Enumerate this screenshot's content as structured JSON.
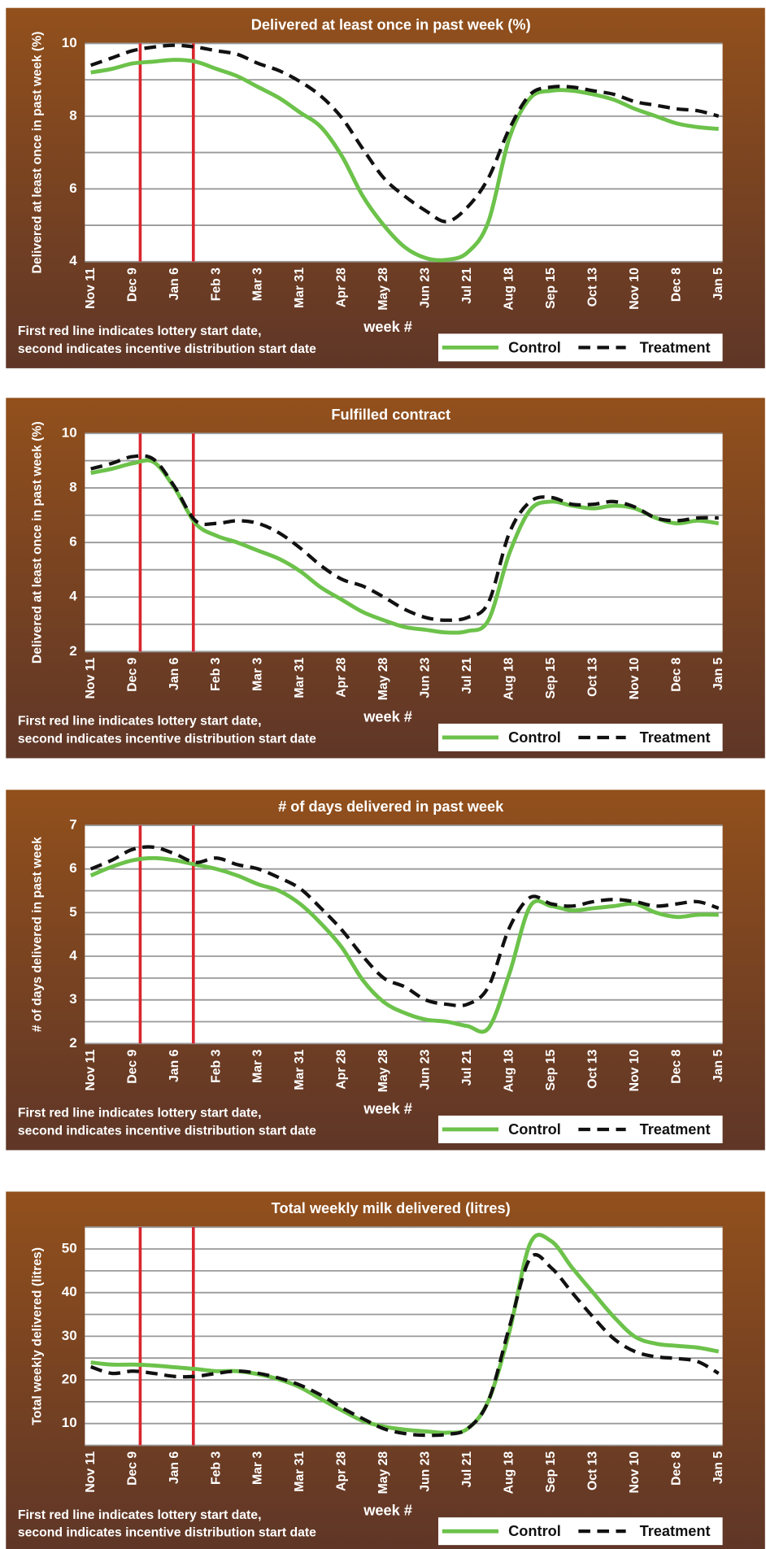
{
  "chart_data": [
    {
      "type": "line",
      "title": "Delivered at least once in past week (%)",
      "ylabel": "Delivered at least once in past week (%)",
      "xlabel": "week #",
      "note": [
        "First red line indicates lottery start date,",
        "second indicates incentive distribution start date"
      ],
      "categories": [
        "Nov 11",
        null,
        "Dec 9",
        null,
        "Jan 6",
        null,
        "Feb 3",
        null,
        "Mar 3",
        null,
        "Mar 31",
        null,
        "Apr 28",
        null,
        "May 28",
        null,
        "Jun 23",
        null,
        "Jul 21",
        null,
        "Aug 18",
        null,
        "Sep 15",
        null,
        "Oct 13",
        null,
        "Nov 10",
        null,
        "Dec 8",
        null,
        "Jan 5"
      ],
      "ylim": [
        4,
        10
      ],
      "yticks": [
        4,
        6,
        8,
        10
      ],
      "minor_grid": [
        5,
        7,
        9
      ],
      "grid": true,
      "vlines_x": [
        2.36,
        4.9
      ],
      "vline_color": "#d9262e",
      "series": [
        {
          "name": "Control",
          "color": "#6cc24a",
          "dashed": false,
          "values": [
            9.2,
            9.3,
            9.45,
            9.5,
            9.55,
            9.5,
            9.3,
            9.1,
            8.8,
            8.5,
            8.1,
            7.7,
            6.9,
            5.8,
            5.0,
            4.4,
            4.1,
            4.05,
            4.25,
            5.1,
            7.4,
            8.5,
            8.7,
            8.7,
            8.6,
            8.45,
            8.2,
            8.0,
            7.8,
            7.7,
            7.65
          ]
        },
        {
          "name": "Treatment",
          "color": "#111111",
          "dashed": true,
          "values": [
            9.4,
            9.6,
            9.8,
            9.9,
            9.95,
            9.9,
            9.8,
            9.7,
            9.45,
            9.25,
            8.95,
            8.55,
            7.95,
            7.1,
            6.3,
            5.8,
            5.4,
            5.1,
            5.5,
            6.3,
            7.65,
            8.6,
            8.8,
            8.8,
            8.7,
            8.6,
            8.4,
            8.3,
            8.2,
            8.15,
            8.0
          ]
        }
      ]
    },
    {
      "type": "line",
      "title": "Fulfilled contract",
      "ylabel": "Delivered at least once in past week (%)",
      "xlabel": "week #",
      "note": [
        "First red line indicates lottery start date,",
        "second indicates incentive distribution start date"
      ],
      "categories": [
        "Nov 11",
        null,
        "Dec 9",
        null,
        "Jan 6",
        null,
        "Feb 3",
        null,
        "Mar 3",
        null,
        "Mar 31",
        null,
        "Apr 28",
        null,
        "May 28",
        null,
        "Jun 23",
        null,
        "Jul 21",
        null,
        "Aug 18",
        null,
        "Sep 15",
        null,
        "Oct 13",
        null,
        "Nov 10",
        null,
        "Dec 8",
        null,
        "Jan 5"
      ],
      "ylim": [
        2,
        10
      ],
      "yticks": [
        2,
        4,
        6,
        8,
        10
      ],
      "minor_grid": [
        3,
        5,
        7,
        9
      ],
      "grid": true,
      "vlines_x": [
        2.36,
        4.9
      ],
      "vline_color": "#d9262e",
      "series": [
        {
          "name": "Control",
          "color": "#6cc24a",
          "dashed": false,
          "values": [
            8.55,
            8.7,
            8.9,
            8.95,
            8.0,
            6.7,
            6.25,
            6.0,
            5.7,
            5.4,
            4.95,
            4.35,
            3.9,
            3.45,
            3.15,
            2.9,
            2.8,
            2.7,
            2.75,
            3.15,
            5.6,
            7.2,
            7.5,
            7.35,
            7.25,
            7.35,
            7.25,
            6.9,
            6.7,
            6.8,
            6.7
          ]
        },
        {
          "name": "Treatment",
          "color": "#111111",
          "dashed": true,
          "values": [
            8.7,
            8.9,
            9.15,
            9.05,
            8.05,
            6.8,
            6.7,
            6.8,
            6.7,
            6.35,
            5.8,
            5.15,
            4.65,
            4.4,
            4.0,
            3.55,
            3.25,
            3.15,
            3.25,
            3.8,
            6.35,
            7.5,
            7.65,
            7.4,
            7.4,
            7.5,
            7.3,
            6.9,
            6.8,
            6.9,
            6.9
          ]
        }
      ]
    },
    {
      "type": "line",
      "title": "# of days delivered in past week",
      "ylabel": "# of days delivered in past week",
      "xlabel": "week #",
      "note": [
        "First red line indicates lottery start date,",
        "second indicates incentive distribution start date"
      ],
      "categories": [
        "Nov 11",
        null,
        "Dec 9",
        null,
        "Jan 6",
        null,
        "Feb 3",
        null,
        "Mar 3",
        null,
        "Mar 31",
        null,
        "Apr 28",
        null,
        "May 28",
        null,
        "Jun 23",
        null,
        "Jul 21",
        null,
        "Aug 18",
        null,
        "Sep 15",
        null,
        "Oct 13",
        null,
        "Nov 10",
        null,
        "Dec 8",
        null,
        "Jan 5"
      ],
      "ylim": [
        2,
        7
      ],
      "yticks": [
        2,
        3,
        4,
        5,
        6,
        7
      ],
      "minor_grid": [
        2.5,
        3.5,
        4.5,
        5.5,
        6.5
      ],
      "grid": true,
      "vlines_x": [
        2.36,
        4.9
      ],
      "vline_color": "#d9262e",
      "series": [
        {
          "name": "Control",
          "color": "#6cc24a",
          "dashed": false,
          "values": [
            5.85,
            6.05,
            6.2,
            6.25,
            6.2,
            6.1,
            6.0,
            5.85,
            5.65,
            5.5,
            5.2,
            4.75,
            4.2,
            3.45,
            2.95,
            2.7,
            2.55,
            2.5,
            2.4,
            2.35,
            3.6,
            5.15,
            5.15,
            5.05,
            5.1,
            5.15,
            5.2,
            5.0,
            4.9,
            4.95,
            4.95
          ]
        },
        {
          "name": "Treatment",
          "color": "#111111",
          "dashed": true,
          "values": [
            6.0,
            6.2,
            6.45,
            6.5,
            6.35,
            6.15,
            6.25,
            6.1,
            6.0,
            5.8,
            5.55,
            5.1,
            4.6,
            4.0,
            3.5,
            3.3,
            3.0,
            2.9,
            2.9,
            3.3,
            4.65,
            5.35,
            5.2,
            5.15,
            5.25,
            5.3,
            5.25,
            5.15,
            5.2,
            5.25,
            5.1
          ]
        }
      ]
    },
    {
      "type": "line",
      "title": "Total weekly milk delivered (litres)",
      "ylabel": "Total weekly delivered (litres)",
      "xlabel": "week #",
      "note": [
        "First red line indicates lottery start date,",
        "second indicates incentive distribution start date"
      ],
      "categories": [
        "Nov 11",
        null,
        "Dec 9",
        null,
        "Jan 6",
        null,
        "Feb 3",
        null,
        "Mar 3",
        null,
        "Mar 31",
        null,
        "Apr 28",
        null,
        "May 28",
        null,
        "Jun 23",
        null,
        "Jul 21",
        null,
        "Aug 18",
        null,
        "Sep 15",
        null,
        "Oct 13",
        null,
        "Nov 10",
        null,
        "Dec 8",
        null,
        "Jan 5"
      ],
      "ylim": [
        5,
        55
      ],
      "yticks": [
        10,
        20,
        30,
        40,
        50
      ],
      "minor_grid": [
        5,
        15,
        25,
        35,
        45,
        55
      ],
      "grid": true,
      "vlines_x": [
        2.36,
        4.9
      ],
      "vline_color": "#d9262e",
      "series": [
        {
          "name": "Control",
          "color": "#6cc24a",
          "dashed": false,
          "values": [
            24.0,
            23.5,
            23.5,
            23.3,
            22.9,
            22.5,
            22.0,
            22.0,
            21.3,
            20.1,
            18.3,
            15.6,
            13.0,
            10.6,
            9.3,
            8.6,
            8.2,
            7.9,
            8.8,
            15.2,
            31.0,
            51.3,
            51.8,
            45.7,
            40.0,
            34.4,
            29.9,
            28.3,
            27.8,
            27.4,
            26.5
          ]
        },
        {
          "name": "Treatment",
          "color": "#111111",
          "dashed": true,
          "values": [
            23.0,
            21.5,
            22.0,
            21.5,
            20.8,
            20.8,
            21.5,
            22.0,
            21.5,
            20.4,
            18.8,
            16.5,
            13.6,
            11.1,
            8.8,
            7.7,
            7.3,
            7.5,
            8.8,
            15.2,
            32.1,
            47.9,
            45.7,
            40.0,
            34.4,
            29.4,
            26.5,
            25.3,
            24.9,
            24.2,
            21.5
          ]
        }
      ]
    }
  ]
}
